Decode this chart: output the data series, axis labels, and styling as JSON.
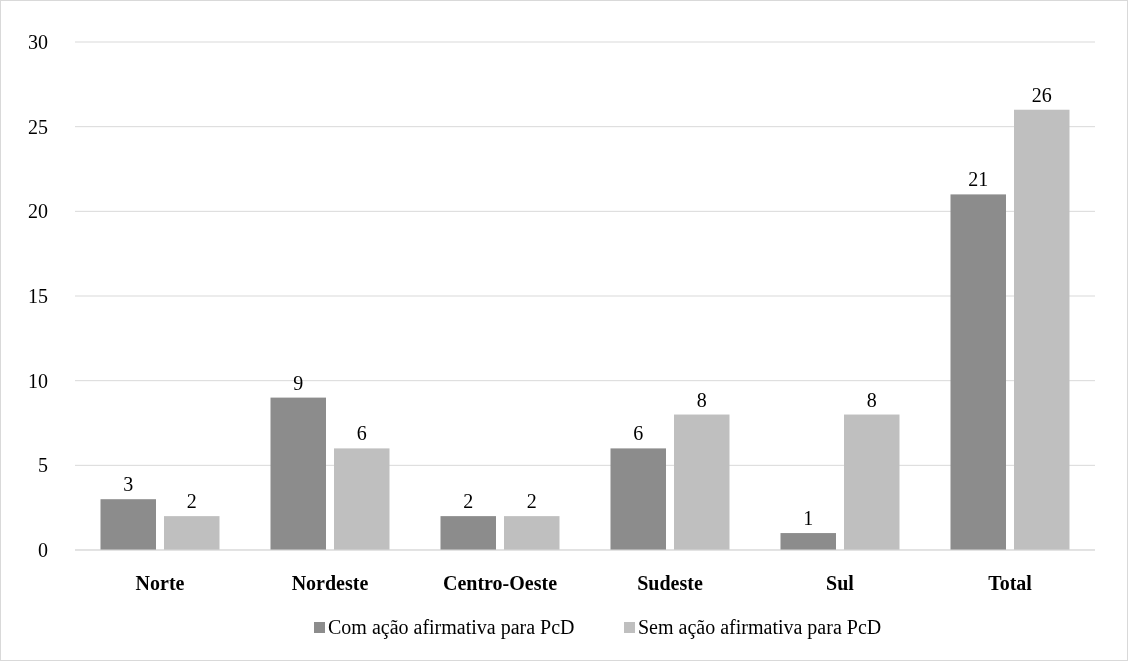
{
  "chart_data": {
    "type": "bar",
    "categories": [
      "Norte",
      "Nordeste",
      "Centro-Oeste",
      "Sudeste",
      "Sul",
      "Total"
    ],
    "series": [
      {
        "name": "Com ação afirmativa para PcD",
        "color": "#8c8c8c",
        "values": [
          3,
          9,
          2,
          6,
          1,
          21
        ]
      },
      {
        "name": "Sem ação afirmativa para PcD",
        "color": "#bfbfbf",
        "values": [
          2,
          6,
          2,
          8,
          8,
          26
        ]
      }
    ],
    "ylim": [
      0,
      30
    ],
    "yticks": [
      0,
      5,
      10,
      15,
      20,
      25,
      30
    ],
    "grid": "y",
    "legend": "bottom",
    "data_labels": true
  }
}
